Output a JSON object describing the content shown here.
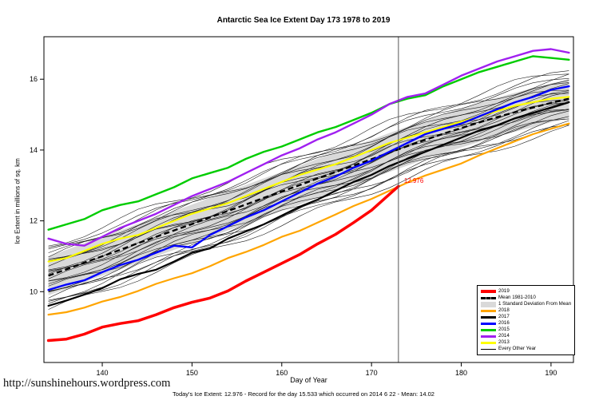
{
  "page": {
    "url": "http://sunshinehours.wordpress.com",
    "footer": "Today's Ice Extent: 12.976  - Record for the day  15.533 which occurred on 2014 6 22  - Mean: 14.02"
  },
  "chart_data": {
    "type": "line",
    "title": "Antarctic Sea Ice Extent Day 173 1978 to 2019",
    "xlabel": "Day of Year",
    "ylabel": "Ice Extent in millions of sq. km",
    "xlim": [
      133.5,
      192.5
    ],
    "ylim": [
      8.0,
      17.2
    ],
    "x_ticks": [
      140,
      150,
      160,
      170,
      180,
      190
    ],
    "y_ticks": [
      10,
      12,
      14,
      16
    ],
    "grid": false,
    "marker_day": 173,
    "annotation": {
      "text": "12.976",
      "day": 173,
      "value": 12.976,
      "color": "#FF0000"
    },
    "band_color": "#D9D9D9",
    "std_dev": 0.55,
    "x": [
      134,
      136,
      138,
      140,
      142,
      144,
      146,
      148,
      150,
      152,
      154,
      156,
      158,
      160,
      162,
      164,
      166,
      168,
      170,
      172,
      174,
      176,
      178,
      180,
      182,
      184,
      186,
      188,
      190,
      192
    ],
    "mean": [
      10.45,
      10.63,
      10.82,
      11.0,
      11.18,
      11.37,
      11.55,
      11.73,
      11.91,
      12.1,
      12.28,
      12.46,
      12.65,
      12.83,
      13.01,
      13.2,
      13.38,
      13.56,
      13.74,
      13.93,
      14.11,
      14.29,
      14.46,
      14.62,
      14.78,
      14.93,
      15.07,
      15.2,
      15.33,
      15.45
    ],
    "mean_name": "Mean 1981-2010",
    "series": [
      {
        "name": "2013",
        "color": "#FFFF00",
        "width": 2.2,
        "values": [
          10.85,
          10.95,
          11.15,
          11.35,
          11.5,
          11.6,
          11.8,
          12.0,
          12.2,
          12.35,
          12.5,
          12.7,
          12.9,
          13.1,
          13.3,
          13.45,
          13.6,
          13.8,
          14.0,
          14.2,
          14.35,
          14.5,
          14.65,
          14.8,
          14.95,
          15.1,
          15.25,
          15.35,
          15.45,
          15.5
        ]
      },
      {
        "name": "2018",
        "color": "#FFA500",
        "width": 2.2,
        "values": [
          9.35,
          9.42,
          9.55,
          9.72,
          9.85,
          10.02,
          10.22,
          10.38,
          10.52,
          10.72,
          10.95,
          11.12,
          11.32,
          11.55,
          11.72,
          11.95,
          12.18,
          12.42,
          12.62,
          12.85,
          13.08,
          13.28,
          13.45,
          13.62,
          13.85,
          14.05,
          14.25,
          14.45,
          14.6,
          14.75
        ]
      },
      {
        "name": "2017",
        "color": "#000000",
        "width": 2.2,
        "values": [
          9.6,
          9.75,
          9.92,
          10.1,
          10.35,
          10.5,
          10.62,
          10.85,
          11.1,
          11.22,
          11.5,
          11.7,
          11.9,
          12.15,
          12.4,
          12.6,
          12.85,
          13.1,
          13.3,
          13.55,
          13.75,
          13.95,
          14.15,
          14.35,
          14.55,
          14.7,
          14.9,
          15.05,
          15.2,
          15.35
        ]
      },
      {
        "name": "2016",
        "color": "#0000FF",
        "width": 2.4,
        "values": [
          10.05,
          10.2,
          10.32,
          10.55,
          10.75,
          10.9,
          11.1,
          11.3,
          11.25,
          11.6,
          11.85,
          12.1,
          12.3,
          12.55,
          12.8,
          13.05,
          13.25,
          13.5,
          13.7,
          13.95,
          14.2,
          14.45,
          14.6,
          14.75,
          14.95,
          15.15,
          15.35,
          15.5,
          15.7,
          15.8
        ]
      },
      {
        "name": "2015",
        "color": "#00CC00",
        "width": 2.4,
        "values": [
          11.75,
          11.9,
          12.05,
          12.3,
          12.45,
          12.55,
          12.75,
          12.95,
          13.2,
          13.35,
          13.5,
          13.75,
          13.95,
          14.1,
          14.3,
          14.5,
          14.65,
          14.85,
          15.05,
          15.3,
          15.45,
          15.55,
          15.8,
          16.0,
          16.2,
          16.35,
          16.5,
          16.65,
          16.6,
          16.55
        ]
      },
      {
        "name": "2014",
        "color": "#A020F0",
        "width": 2.4,
        "values": [
          11.5,
          11.35,
          11.3,
          11.55,
          11.8,
          12.0,
          12.2,
          12.45,
          12.7,
          12.9,
          13.1,
          13.35,
          13.6,
          13.85,
          14.05,
          14.3,
          14.5,
          14.75,
          15.0,
          15.3,
          15.5,
          15.6,
          15.85,
          16.1,
          16.3,
          16.5,
          16.65,
          16.8,
          16.85,
          16.75
        ]
      },
      {
        "name": "2019",
        "color": "#FF0000",
        "width": 3.5,
        "x": [
          134,
          136,
          138,
          140,
          142,
          144,
          146,
          148,
          150,
          152,
          154,
          156,
          158,
          160,
          162,
          164,
          166,
          168,
          170,
          172,
          173
        ],
        "values": [
          8.62,
          8.66,
          8.8,
          9.0,
          9.1,
          9.18,
          9.35,
          9.55,
          9.7,
          9.82,
          10.02,
          10.3,
          10.55,
          10.8,
          11.05,
          11.35,
          11.62,
          11.95,
          12.3,
          12.75,
          12.976
        ]
      }
    ],
    "other_years": {
      "name": "Every Other Year",
      "color": "#1a1a1a",
      "lines": [
        [
          -1.0,
          -0.85,
          0.1,
          0.5
        ],
        [
          -0.9,
          -0.6,
          0.12,
          1.2
        ],
        [
          -0.8,
          -0.75,
          0.08,
          2.0
        ],
        [
          -0.72,
          -0.5,
          0.11,
          2.9
        ],
        [
          -0.65,
          -0.7,
          0.09,
          0.2
        ],
        [
          -0.58,
          -0.35,
          0.12,
          1.7
        ],
        [
          -0.5,
          -0.55,
          0.1,
          2.4
        ],
        [
          -0.45,
          -0.25,
          0.08,
          3.1
        ],
        [
          -0.38,
          -0.45,
          0.11,
          0.9
        ],
        [
          -0.32,
          -0.15,
          0.09,
          1.5
        ],
        [
          -0.25,
          -0.3,
          0.12,
          2.2
        ],
        [
          -0.18,
          -0.05,
          0.1,
          2.8
        ],
        [
          -0.12,
          -0.2,
          0.08,
          0.4
        ],
        [
          -0.05,
          0.1,
          0.11,
          1.1
        ],
        [
          0.02,
          -0.08,
          0.09,
          1.9
        ],
        [
          0.08,
          0.2,
          0.12,
          2.6
        ],
        [
          0.15,
          0.05,
          0.1,
          3.0
        ],
        [
          0.22,
          0.35,
          0.08,
          0.7
        ],
        [
          0.28,
          0.15,
          0.11,
          1.4
        ],
        [
          0.35,
          0.45,
          0.09,
          2.1
        ],
        [
          0.42,
          0.3,
          0.12,
          2.7
        ],
        [
          0.5,
          0.6,
          0.1,
          0.3
        ],
        [
          0.58,
          0.45,
          0.08,
          1.0
        ],
        [
          0.65,
          0.75,
          0.11,
          1.8
        ],
        [
          0.75,
          0.6,
          0.09,
          2.5
        ],
        [
          0.85,
          0.8,
          0.12,
          3.2
        ]
      ]
    }
  },
  "legend": {
    "entries": [
      {
        "label": "2019",
        "swatch": "line",
        "color": "#FF0000",
        "lw": 4
      },
      {
        "label": "Mean 1981-2010",
        "swatch": "dashed",
        "color": "#000000",
        "lw": 3
      },
      {
        "label": "1 Standard Deviation From Mean",
        "swatch": "box",
        "color": "#D9D9D9"
      },
      {
        "label": "2018",
        "swatch": "line",
        "color": "#FFA500",
        "lw": 3
      },
      {
        "label": "2017",
        "swatch": "line",
        "color": "#000000",
        "lw": 3
      },
      {
        "label": "2016",
        "swatch": "line",
        "color": "#0000FF",
        "lw": 3
      },
      {
        "label": "2015",
        "swatch": "line",
        "color": "#00CC00",
        "lw": 3
      },
      {
        "label": "2014",
        "swatch": "line",
        "color": "#A020F0",
        "lw": 3
      },
      {
        "label": "2013",
        "swatch": "line",
        "color": "#FFFF00",
        "lw": 3
      },
      {
        "label": "Every Other Year",
        "swatch": "line",
        "color": "#000000",
        "lw": 1
      }
    ]
  }
}
